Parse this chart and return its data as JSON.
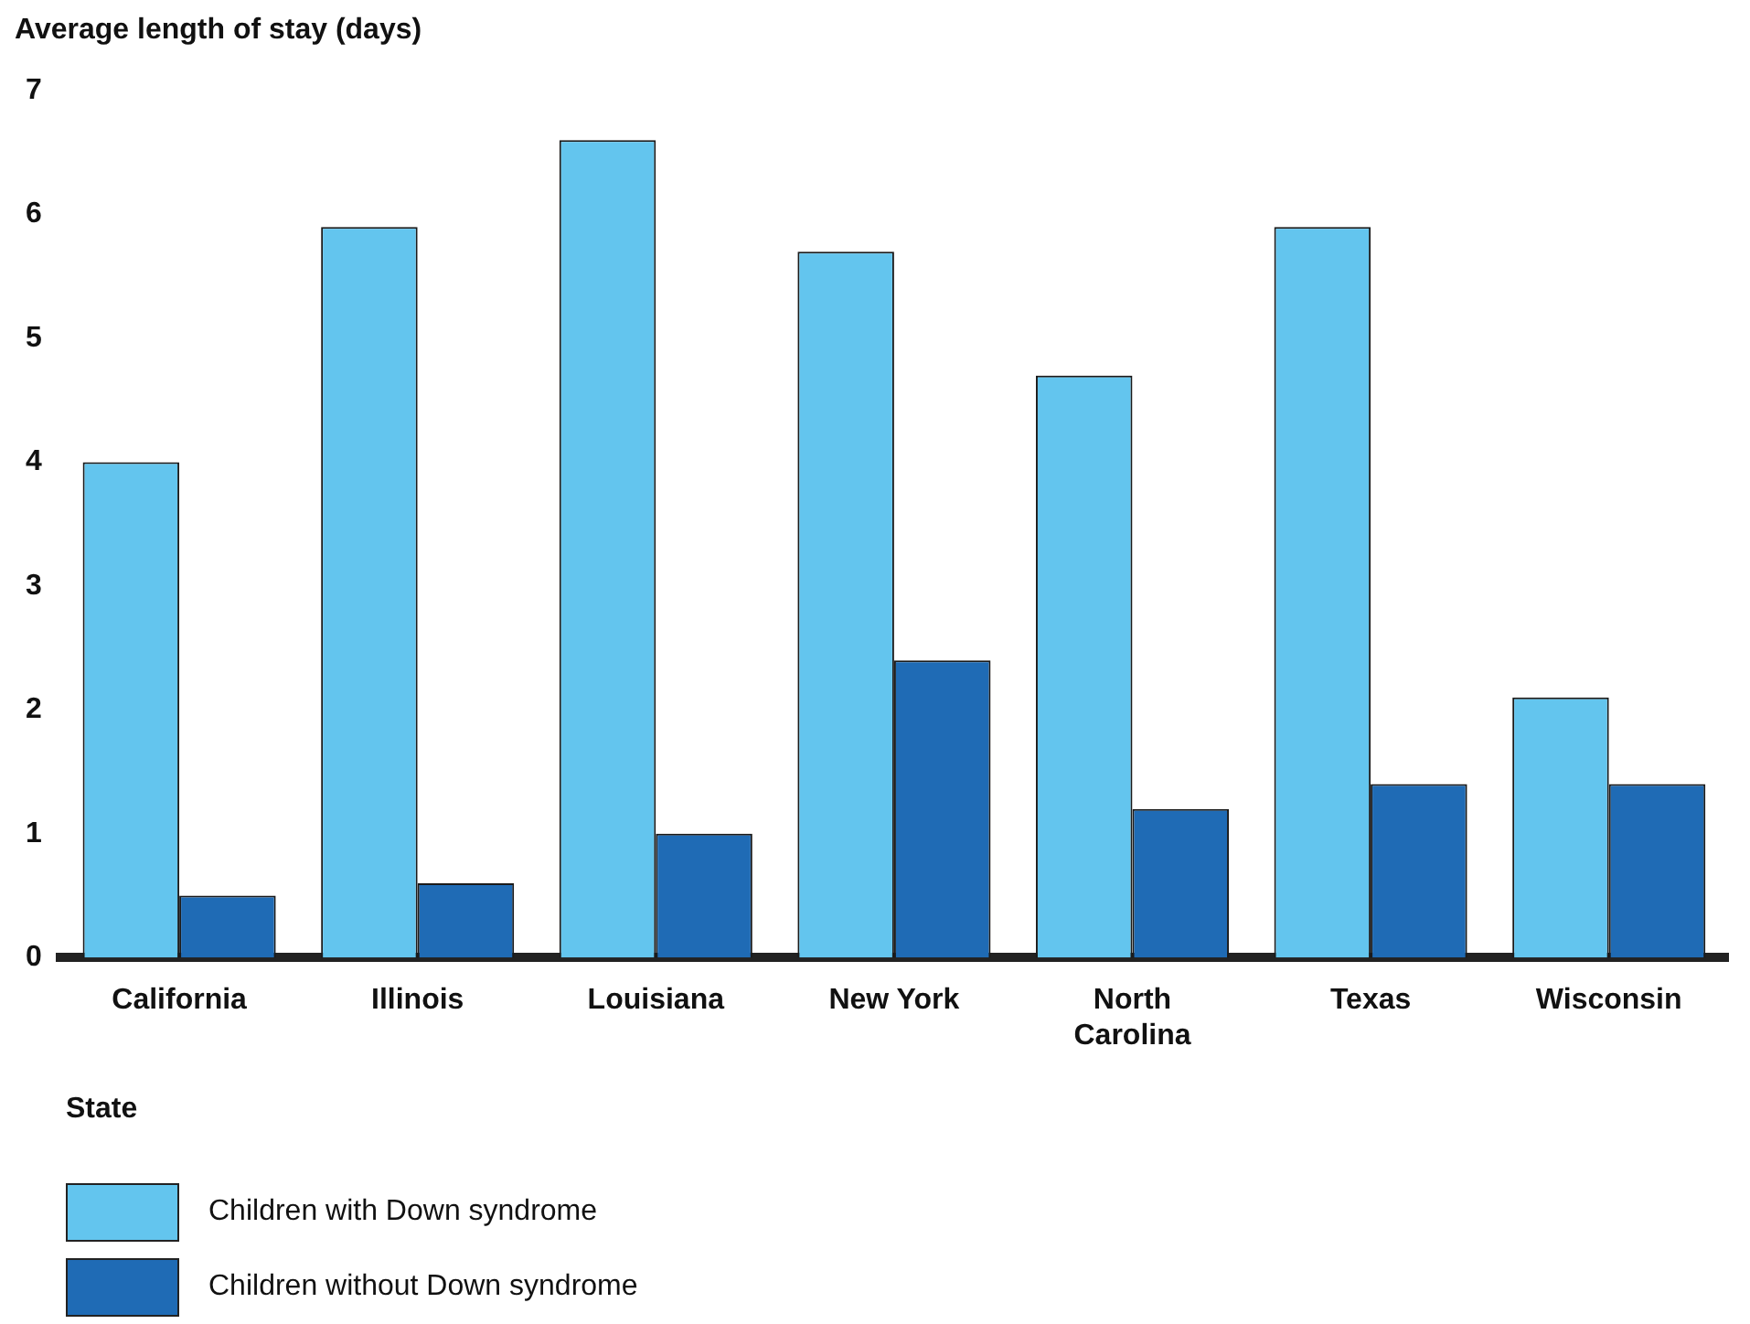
{
  "chart_data": {
    "type": "bar",
    "ylabel": "Average length of stay (days)",
    "xlabel": "State",
    "categories": [
      "California",
      "Illinois",
      "Louisiana",
      "New York",
      "North Carolina",
      "Texas",
      "Wisconsin"
    ],
    "series": [
      {
        "name": "Children with Down syndrome",
        "color": "#63c5ee",
        "values": [
          4.0,
          5.9,
          6.6,
          5.7,
          4.7,
          5.9,
          2.1
        ]
      },
      {
        "name": "Children without Down syndrome",
        "color": "#1f6bb5",
        "values": [
          0.5,
          0.6,
          1.0,
          2.4,
          1.2,
          1.4,
          1.4
        ]
      }
    ],
    "ylim": [
      0,
      7
    ],
    "yticks": [
      0,
      1,
      2,
      3,
      4,
      5,
      6,
      7
    ],
    "grid": false,
    "legend": "bottom"
  }
}
